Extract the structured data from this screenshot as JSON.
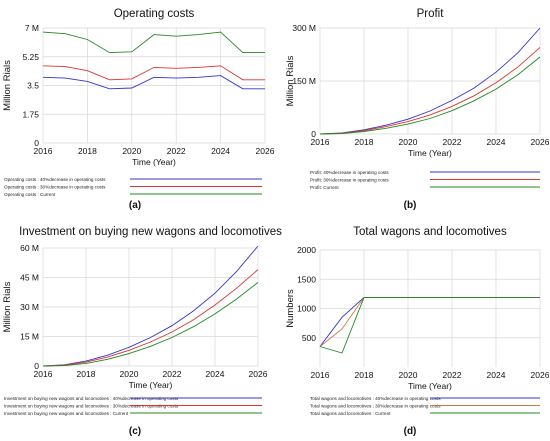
{
  "chart_data": [
    {
      "panel": "(a)",
      "type": "line",
      "title": "Operating costs",
      "xlabel": "Time  (Year)",
      "ylabel": "Million Rials",
      "xlim": [
        2016,
        2026
      ],
      "ylim": [
        0,
        7
      ],
      "xticks": [
        2016,
        2018,
        2020,
        2022,
        2024,
        2026
      ],
      "yticks": [
        {
          "v": 0,
          "label": "0"
        },
        {
          "v": 1.75,
          "label": "1.75"
        },
        {
          "v": 3.5,
          "label": "3.5"
        },
        {
          "v": 5.25,
          "label": "5.25"
        },
        {
          "v": 7,
          "label": "7 M"
        }
      ],
      "grid": true,
      "legend": "below",
      "series": [
        {
          "name": "Operating costs : 40%decrease in operating costs",
          "color": "#3333cc",
          "x": [
            2016,
            2017,
            2018,
            2019,
            2020,
            2021,
            2022,
            2023,
            2024,
            2025,
            2026
          ],
          "y": [
            4.0,
            3.95,
            3.75,
            3.3,
            3.35,
            4.0,
            3.95,
            4.0,
            4.1,
            3.3,
            3.3
          ]
        },
        {
          "name": "Operating costs : 30%decrease in operating costs",
          "color": "#dd3333",
          "x": [
            2016,
            2017,
            2018,
            2019,
            2020,
            2021,
            2022,
            2023,
            2024,
            2025,
            2026
          ],
          "y": [
            4.7,
            4.65,
            4.4,
            3.85,
            3.9,
            4.6,
            4.55,
            4.6,
            4.7,
            3.85,
            3.85
          ]
        },
        {
          "name": "Operating costs : Current",
          "color": "#228822",
          "x": [
            2016,
            2017,
            2018,
            2019,
            2020,
            2021,
            2022,
            2023,
            2024,
            2025,
            2026
          ],
          "y": [
            6.75,
            6.65,
            6.3,
            5.5,
            5.55,
            6.6,
            6.5,
            6.6,
            6.75,
            5.5,
            5.5
          ]
        }
      ]
    },
    {
      "panel": "(b)",
      "type": "line",
      "title": "Profit",
      "xlabel": "Time  (Year)",
      "ylabel": "Million Rials",
      "xlim": [
        2016,
        2026
      ],
      "ylim": [
        0,
        300
      ],
      "xticks": [
        2016,
        2018,
        2020,
        2022,
        2024,
        2026
      ],
      "yticks": [
        {
          "v": 0,
          "label": "0"
        },
        {
          "v": 150,
          "label": "150 M"
        },
        {
          "v": 300,
          "label": "300 M"
        }
      ],
      "grid": true,
      "legend": "below",
      "series": [
        {
          "name": "Profit: 40%decrease in operating costs",
          "color": "#3333cc",
          "x": [
            2016,
            2017,
            2018,
            2019,
            2020,
            2021,
            2022,
            2023,
            2024,
            2025,
            2026
          ],
          "y": [
            0,
            3,
            12,
            25,
            42,
            65,
            95,
            130,
            175,
            230,
            300
          ]
        },
        {
          "name": "Profit: 30%decrease in operating costs",
          "color": "#dd3333",
          "x": [
            2016,
            2017,
            2018,
            2019,
            2020,
            2021,
            2022,
            2023,
            2024,
            2025,
            2026
          ],
          "y": [
            0,
            2,
            10,
            21,
            35,
            54,
            78,
            108,
            145,
            190,
            245
          ]
        },
        {
          "name": "Profit: Current",
          "color": "#228822",
          "x": [
            2016,
            2017,
            2018,
            2019,
            2020,
            2021,
            2022,
            2023,
            2024,
            2025,
            2026
          ],
          "y": [
            0,
            1,
            7,
            16,
            28,
            44,
            66,
            94,
            127,
            168,
            218
          ]
        }
      ]
    },
    {
      "panel": "(c)",
      "type": "line",
      "title": "Investment on buying new wagons and locomotives",
      "xlabel": "Time  (Year)",
      "ylabel": "Million Rials",
      "xlim": [
        2016,
        2026
      ],
      "ylim": [
        0,
        60
      ],
      "xticks": [
        2016,
        2018,
        2020,
        2022,
        2024,
        2026
      ],
      "yticks": [
        {
          "v": 0,
          "label": "0"
        },
        {
          "v": 15,
          "label": "15 M"
        },
        {
          "v": 30,
          "label": "30 M"
        },
        {
          "v": 45,
          "label": "45 M"
        },
        {
          "v": 60,
          "label": "60 M"
        }
      ],
      "grid": true,
      "legend": "below",
      "series": [
        {
          "name": "Investment on buying new wagons and locomotives : 40%decrease in operating costs",
          "color": "#3333cc",
          "x": [
            2016,
            2017,
            2018,
            2019,
            2020,
            2021,
            2022,
            2023,
            2024,
            2025,
            2026
          ],
          "y": [
            0,
            0.6,
            2.5,
            5.5,
            9.5,
            14.5,
            20.5,
            28,
            37,
            48,
            61
          ]
        },
        {
          "name": "Investment on buying new wagons and locomotives : 30%decrease in operating costs",
          "color": "#dd3333",
          "x": [
            2016,
            2017,
            2018,
            2019,
            2020,
            2021,
            2022,
            2023,
            2024,
            2025,
            2026
          ],
          "y": [
            0,
            0.4,
            2.0,
            4.5,
            8,
            12.2,
            17.3,
            23.5,
            31,
            39.5,
            49
          ]
        },
        {
          "name": "Investment on buying new wagons and locomotives : Current",
          "color": "#228822",
          "x": [
            2016,
            2017,
            2018,
            2019,
            2020,
            2021,
            2022,
            2023,
            2024,
            2025,
            2026
          ],
          "y": [
            0,
            0.2,
            1.3,
            3.4,
            6.3,
            10,
            14.5,
            20,
            26.5,
            34,
            42.5
          ]
        }
      ]
    },
    {
      "panel": "(d)",
      "type": "line",
      "title": "Total wagons and locomotives",
      "xlabel": "Time  (Year)",
      "ylabel": "Numbers",
      "xlim": [
        2016,
        2026
      ],
      "ylim": [
        0,
        2000
      ],
      "xticks": [
        2016,
        2018,
        2020,
        2022,
        2024,
        2026
      ],
      "yticks": [
        {
          "v": 500,
          "label": "500"
        },
        {
          "v": 1000,
          "label": "1000"
        },
        {
          "v": 1500,
          "label": "1500"
        },
        {
          "v": 2000,
          "label": "2000"
        }
      ],
      "grid": true,
      "legend": "below",
      "series": [
        {
          "name": "Total wagons and locomotives : 40%decrease in operating costs",
          "color": "#3333cc",
          "x": [
            2016,
            2017,
            2018,
            2019,
            2020,
            2021,
            2022,
            2023,
            2024,
            2025,
            2026
          ],
          "y": [
            350,
            850,
            1190,
            1190,
            1190,
            1190,
            1190,
            1190,
            1190,
            1190,
            1190
          ]
        },
        {
          "name": "Total wagons and locomotives : 30%decrease in operating costs",
          "color": "#cc7744",
          "x": [
            2016,
            2017,
            2018,
            2019,
            2020,
            2021,
            2022,
            2023,
            2024,
            2025,
            2026
          ],
          "y": [
            350,
            650,
            1190,
            1190,
            1190,
            1190,
            1190,
            1190,
            1190,
            1190,
            1190
          ]
        },
        {
          "name": "Total wagons and locomotives : Current",
          "color": "#228822",
          "x": [
            2016,
            2017,
            2018,
            2019,
            2020,
            2021,
            2022,
            2023,
            2024,
            2025,
            2026
          ],
          "y": [
            350,
            240,
            1190,
            1190,
            1190,
            1190,
            1190,
            1190,
            1190,
            1190,
            1190
          ]
        }
      ]
    }
  ]
}
